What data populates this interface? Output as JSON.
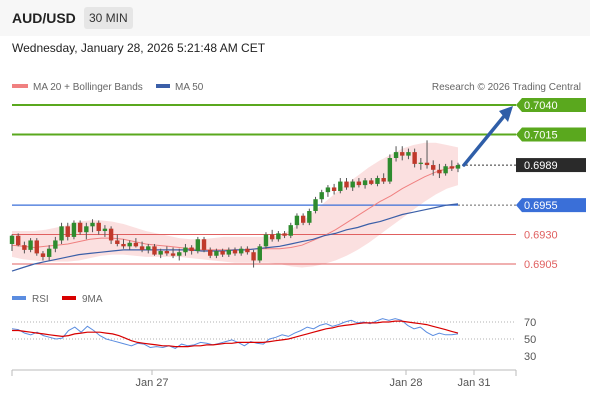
{
  "header": {
    "symbol": "AUD/USD",
    "timeframe": "30 MIN"
  },
  "datetime": "Wednesday, January 28, 2026 5:21:48 AM CET",
  "legend": {
    "ma20": "MA 20 + Bollinger Bands",
    "ma50": "MA 50",
    "credit": "Research © 2026 Trading Central",
    "rsi": "RSI",
    "ma9": "9MA"
  },
  "colors": {
    "green_level": "#5aa81e",
    "blue_level": "#3a6fd8",
    "red_level": "#e06060",
    "ma20": "#f08080",
    "band_fill": "#f9d0cf",
    "ma50": "#3b5fa8",
    "up_candle": "#2e8b2e",
    "down_candle": "#c0392b",
    "arrow": "#2f5ea8",
    "rsi": "#5b8de0",
    "rsi_ma9": "#d80000"
  },
  "chart_data": [
    {
      "type": "candlestick",
      "title": "AUD/USD",
      "x_ticks": [
        "Jan 27",
        "Jan 28",
        "Jan 31"
      ],
      "ylim": [
        0.6895,
        0.7045
      ],
      "levels": [
        {
          "value": 0.704,
          "label": "0.7040",
          "kind": "resistance",
          "style": "green-box"
        },
        {
          "value": 0.7015,
          "label": "0.7015",
          "kind": "resistance",
          "style": "green-box"
        },
        {
          "value": 0.6989,
          "label": "0.6989",
          "kind": "current",
          "style": "dark-box"
        },
        {
          "value": 0.6955,
          "label": "0.6955",
          "kind": "pivot",
          "style": "blue-box"
        },
        {
          "value": 0.693,
          "label": "0.6930",
          "kind": "support",
          "style": "red-text"
        },
        {
          "value": 0.6905,
          "label": "0.6905",
          "kind": "support",
          "style": "red-text"
        }
      ],
      "candles": [
        [
          0.6922,
          0.693,
          0.6916,
          0.6929
        ],
        [
          0.6929,
          0.6931,
          0.692,
          0.6921
        ],
        [
          0.6921,
          0.6924,
          0.6914,
          0.6917
        ],
        [
          0.6917,
          0.6927,
          0.6915,
          0.6925
        ],
        [
          0.6925,
          0.6927,
          0.6912,
          0.6914
        ],
        [
          0.6914,
          0.6916,
          0.6908,
          0.6911
        ],
        [
          0.6911,
          0.6921,
          0.6908,
          0.6918
        ],
        [
          0.6918,
          0.6928,
          0.6915,
          0.6925
        ],
        [
          0.6925,
          0.694,
          0.6922,
          0.6937
        ],
        [
          0.6937,
          0.694,
          0.6925,
          0.6928
        ],
        [
          0.6928,
          0.6942,
          0.6926,
          0.694
        ],
        [
          0.694,
          0.6942,
          0.693,
          0.6932
        ],
        [
          0.6932,
          0.694,
          0.6926,
          0.6937
        ],
        [
          0.6937,
          0.6943,
          0.6932,
          0.694
        ],
        [
          0.694,
          0.6942,
          0.693,
          0.6933
        ],
        [
          0.6933,
          0.6938,
          0.6928,
          0.6935
        ],
        [
          0.6935,
          0.6937,
          0.6922,
          0.6925
        ],
        [
          0.6925,
          0.693,
          0.692,
          0.6922
        ],
        [
          0.6922,
          0.6926,
          0.6918,
          0.692
        ],
        [
          0.692,
          0.6925,
          0.6917,
          0.6923
        ],
        [
          0.6923,
          0.6927,
          0.6919,
          0.692
        ],
        [
          0.692,
          0.6924,
          0.6915,
          0.6917
        ],
        [
          0.6917,
          0.6922,
          0.6914,
          0.692
        ],
        [
          0.692,
          0.6922,
          0.6912,
          0.6913
        ],
        [
          0.6913,
          0.6918,
          0.691,
          0.6916
        ],
        [
          0.6916,
          0.692,
          0.6912,
          0.6914
        ],
        [
          0.6914,
          0.6919,
          0.691,
          0.6912
        ],
        [
          0.6912,
          0.6918,
          0.6908,
          0.6915
        ],
        [
          0.6915,
          0.6922,
          0.6912,
          0.6919
        ],
        [
          0.6919,
          0.6921,
          0.6913,
          0.6916
        ],
        [
          0.6916,
          0.6928,
          0.6914,
          0.6926
        ],
        [
          0.6926,
          0.6928,
          0.6915,
          0.6917
        ],
        [
          0.6917,
          0.6919,
          0.691,
          0.6912
        ],
        [
          0.6912,
          0.6918,
          0.691,
          0.6916
        ],
        [
          0.6916,
          0.6918,
          0.6911,
          0.6913
        ],
        [
          0.6913,
          0.6919,
          0.6911,
          0.6917
        ],
        [
          0.6917,
          0.6919,
          0.6912,
          0.6914
        ],
        [
          0.6914,
          0.692,
          0.6912,
          0.6918
        ],
        [
          0.6918,
          0.692,
          0.6913,
          0.6915
        ],
        [
          0.6915,
          0.6917,
          0.6902,
          0.6908
        ],
        [
          0.6908,
          0.6922,
          0.6906,
          0.692
        ],
        [
          0.692,
          0.6932,
          0.6918,
          0.693
        ],
        [
          0.693,
          0.6934,
          0.6924,
          0.6926
        ],
        [
          0.6926,
          0.6933,
          0.6924,
          0.6931
        ],
        [
          0.6931,
          0.6933,
          0.6927,
          0.6929
        ],
        [
          0.6929,
          0.694,
          0.6927,
          0.6938
        ],
        [
          0.6938,
          0.6948,
          0.6935,
          0.6946
        ],
        [
          0.6946,
          0.6948,
          0.6938,
          0.694
        ],
        [
          0.694,
          0.6952,
          0.6938,
          0.695
        ],
        [
          0.695,
          0.6962,
          0.6948,
          0.696
        ],
        [
          0.696,
          0.6968,
          0.6957,
          0.6966
        ],
        [
          0.6966,
          0.6972,
          0.6962,
          0.697
        ],
        [
          0.697,
          0.6973,
          0.6964,
          0.6967
        ],
        [
          0.6967,
          0.6978,
          0.6965,
          0.6975
        ],
        [
          0.6975,
          0.6978,
          0.6968,
          0.697
        ],
        [
          0.697,
          0.6977,
          0.6967,
          0.6975
        ],
        [
          0.6975,
          0.6978,
          0.697,
          0.6972
        ],
        [
          0.6972,
          0.6978,
          0.6969,
          0.6976
        ],
        [
          0.6976,
          0.6978,
          0.6972,
          0.6973
        ],
        [
          0.6973,
          0.698,
          0.6971,
          0.6978
        ],
        [
          0.6978,
          0.6982,
          0.6973,
          0.6975
        ],
        [
          0.6975,
          0.6998,
          0.6973,
          0.6995
        ],
        [
          0.6995,
          0.7005,
          0.6992,
          0.7
        ],
        [
          0.7,
          0.7005,
          0.6993,
          0.6997
        ],
        [
          0.6997,
          0.7003,
          0.6994,
          0.7
        ],
        [
          0.7,
          0.7003,
          0.6987,
          0.699
        ],
        [
          0.699,
          0.6995,
          0.6985,
          0.6991
        ],
        [
          0.6991,
          0.701,
          0.6986,
          0.6989
        ],
        [
          0.6989,
          0.6993,
          0.698,
          0.6985
        ],
        [
          0.6985,
          0.699,
          0.6978,
          0.6982
        ],
        [
          0.6982,
          0.699,
          0.698,
          0.6988
        ],
        [
          0.6988,
          0.6993,
          0.6984,
          0.6986
        ],
        [
          0.6986,
          0.6991,
          0.6983,
          0.6989
        ]
      ],
      "ma20": [
        0.6921,
        0.692,
        0.6919,
        0.692,
        0.6921,
        0.6922,
        0.6924,
        0.6926,
        0.6927,
        0.6927,
        0.6926,
        0.6924,
        0.6922,
        0.6921,
        0.692,
        0.6919,
        0.6918,
        0.6917,
        0.6917,
        0.6917,
        0.6917,
        0.6917,
        0.6918,
        0.6918,
        0.6918,
        0.6919,
        0.6921,
        0.6925,
        0.6929,
        0.6934,
        0.694,
        0.6946,
        0.6952,
        0.6958,
        0.6963,
        0.6969,
        0.6974,
        0.6979,
        0.6983,
        0.6986,
        0.6988
      ],
      "ma50": [
        0.6899,
        0.6902,
        0.6905,
        0.6907,
        0.6909,
        0.6911,
        0.6913,
        0.6914,
        0.6915,
        0.6916,
        0.6917,
        0.6917,
        0.6917,
        0.6917,
        0.6917,
        0.6917,
        0.6917,
        0.6916,
        0.6916,
        0.6916,
        0.6917,
        0.6917,
        0.6918,
        0.6919,
        0.692,
        0.6922,
        0.6924,
        0.6926,
        0.6929,
        0.6931,
        0.6934,
        0.6936,
        0.6939,
        0.6941,
        0.6944,
        0.6947,
        0.6949,
        0.6951,
        0.6953,
        0.6955,
        0.6956
      ],
      "bb_upper": [
        0.6933,
        0.6933,
        0.6933,
        0.6934,
        0.6936,
        0.6938,
        0.6941,
        0.6942,
        0.6942,
        0.6941,
        0.6939,
        0.6936,
        0.6933,
        0.6931,
        0.6929,
        0.6927,
        0.6926,
        0.6926,
        0.6927,
        0.6928,
        0.6928,
        0.6928,
        0.6928,
        0.6928,
        0.6929,
        0.6934,
        0.6941,
        0.6949,
        0.6957,
        0.6965,
        0.6973,
        0.698,
        0.6987,
        0.6993,
        0.6998,
        0.7003,
        0.7006,
        0.7008,
        0.7008,
        0.7006,
        0.7004
      ],
      "bb_lower": [
        0.6911,
        0.6909,
        0.6908,
        0.6907,
        0.6907,
        0.6907,
        0.6908,
        0.691,
        0.6912,
        0.6913,
        0.6913,
        0.6912,
        0.6911,
        0.6911,
        0.6911,
        0.6911,
        0.691,
        0.6909,
        0.6908,
        0.6907,
        0.6906,
        0.6906,
        0.6906,
        0.6906,
        0.6905,
        0.6903,
        0.6902,
        0.6903,
        0.6905,
        0.6908,
        0.6912,
        0.6917,
        0.6923,
        0.693,
        0.6937,
        0.6944,
        0.6951,
        0.6958,
        0.6964,
        0.6969,
        0.6972
      ],
      "forecast_arrow": {
        "from": 0.6989,
        "to": 0.704
      }
    },
    {
      "type": "line",
      "title": "RSI",
      "ylim": [
        20,
        80
      ],
      "y_ticks": [
        70,
        50,
        30
      ],
      "series": [
        {
          "name": "RSI",
          "values": [
            62,
            61,
            57,
            55,
            58,
            54,
            52,
            50,
            51,
            60,
            64,
            58,
            65,
            60,
            54,
            50,
            48,
            46,
            44,
            42,
            45,
            44,
            40,
            41,
            40,
            42,
            39,
            44,
            42,
            43,
            46,
            45,
            43,
            45,
            47,
            49,
            46,
            42,
            47,
            45,
            44,
            50,
            52,
            55,
            53,
            57,
            60,
            64,
            62,
            66,
            68,
            65,
            67,
            70,
            72,
            69,
            70,
            68,
            71,
            74,
            72,
            74,
            72,
            66,
            62,
            64,
            58,
            54,
            57,
            55,
            55,
            56
          ]
        },
        {
          "name": "9MA",
          "values": [
            60,
            60,
            59,
            58,
            57,
            56,
            55,
            54,
            53,
            54,
            56,
            57,
            58,
            58,
            58,
            57,
            56,
            54,
            51,
            48,
            46,
            45,
            44,
            43,
            42,
            42,
            41,
            41,
            41,
            42,
            42,
            43,
            43,
            44,
            45,
            45,
            46,
            46,
            46,
            46,
            46,
            47,
            48,
            49,
            50,
            52,
            54,
            56,
            58,
            60,
            62,
            63,
            65,
            66,
            67,
            68,
            69,
            69,
            69,
            70,
            70,
            71,
            71,
            70,
            69,
            68,
            67,
            65,
            63,
            61,
            59,
            57
          ]
        }
      ]
    }
  ]
}
